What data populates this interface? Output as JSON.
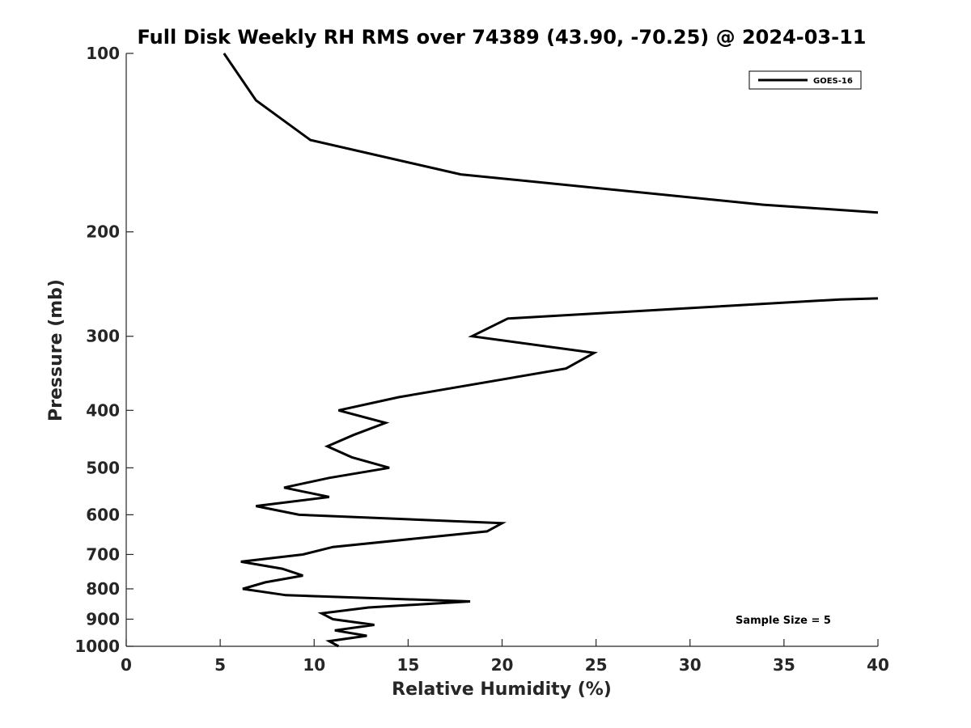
{
  "chart_data": {
    "type": "line",
    "title": "Full Disk Weekly RH RMS over 74389 (43.90, -70.25) @ 2024-03-11",
    "xlabel": "Relative Humidity (%)",
    "ylabel": "Pressure (mb)",
    "xlim": [
      0,
      40
    ],
    "ylim": [
      100,
      1000
    ],
    "y_scale": "log",
    "y_reversed": true,
    "grid": false,
    "legend_position": "top-right",
    "x_ticks": [
      "0",
      "5",
      "10",
      "15",
      "20",
      "25",
      "30",
      "35",
      "40"
    ],
    "y_ticks": [
      "100",
      "200",
      "300",
      "400",
      "500",
      "600",
      "700",
      "800",
      "900",
      "1000"
    ],
    "annotation": "Sample Size = 5",
    "series": [
      {
        "name": "GOES-16",
        "color": "#000000",
        "segments": [
          [
            {
              "x": 5.2,
              "p": 100
            },
            {
              "x": 6.9,
              "p": 120
            },
            {
              "x": 9.8,
              "p": 140
            },
            {
              "x": 17.8,
              "p": 160
            },
            {
              "x": 33.9,
              "p": 180
            },
            {
              "x": 40.0,
              "p": 185.5
            }
          ],
          [
            {
              "x": 40.0,
              "p": 259
            },
            {
              "x": 38.0,
              "p": 260
            },
            {
              "x": 20.3,
              "p": 280
            },
            {
              "x": 18.4,
              "p": 300
            },
            {
              "x": 24.9,
              "p": 320
            },
            {
              "x": 23.4,
              "p": 340
            },
            {
              "x": 14.5,
              "p": 380
            },
            {
              "x": 11.3,
              "p": 400
            },
            {
              "x": 13.8,
              "p": 420
            },
            {
              "x": 12.1,
              "p": 440
            },
            {
              "x": 10.7,
              "p": 460
            },
            {
              "x": 12.0,
              "p": 480
            },
            {
              "x": 14.0,
              "p": 500
            },
            {
              "x": 10.8,
              "p": 520
            },
            {
              "x": 8.4,
              "p": 540
            },
            {
              "x": 10.8,
              "p": 560
            },
            {
              "x": 6.9,
              "p": 580
            },
            {
              "x": 9.2,
              "p": 600
            },
            {
              "x": 20.0,
              "p": 620
            },
            {
              "x": 19.2,
              "p": 640
            },
            {
              "x": 11.0,
              "p": 680
            },
            {
              "x": 9.4,
              "p": 700
            },
            {
              "x": 6.1,
              "p": 720
            },
            {
              "x": 8.3,
              "p": 740
            },
            {
              "x": 9.4,
              "p": 760
            },
            {
              "x": 7.4,
              "p": 780
            },
            {
              "x": 6.2,
              "p": 800
            },
            {
              "x": 8.5,
              "p": 820
            },
            {
              "x": 18.3,
              "p": 840
            },
            {
              "x": 12.9,
              "p": 860
            },
            {
              "x": 10.4,
              "p": 880
            },
            {
              "x": 11.0,
              "p": 900
            },
            {
              "x": 13.2,
              "p": 920
            },
            {
              "x": 11.1,
              "p": 940
            },
            {
              "x": 12.8,
              "p": 960
            },
            {
              "x": 10.8,
              "p": 980
            },
            {
              "x": 11.3,
              "p": 1000
            }
          ]
        ]
      }
    ]
  }
}
